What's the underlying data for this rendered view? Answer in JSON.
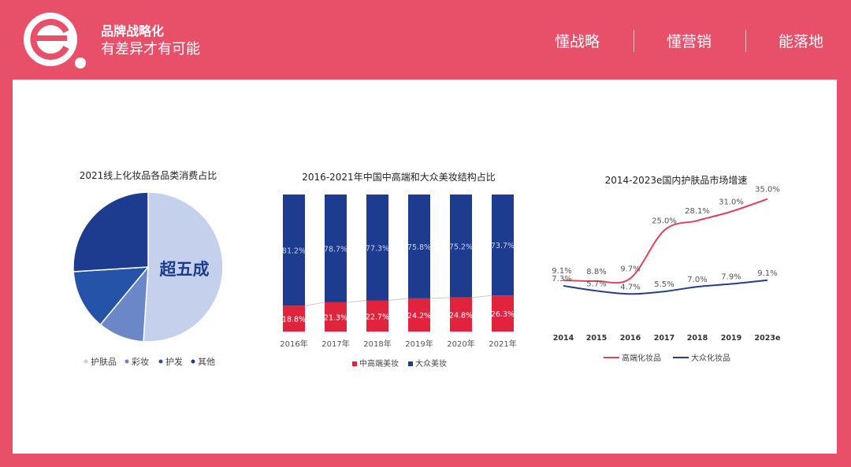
{
  "brand": {
    "title": "品牌战略化",
    "subtitle": "有差异才有可能"
  },
  "nav": [
    {
      "label": "懂战略"
    },
    {
      "label": "懂营销"
    },
    {
      "label": "能落地"
    }
  ],
  "colors": {
    "brand": "#E8506A",
    "navy": "#1D3C8F",
    "red": "#E0243E",
    "pie_light": "#C5D1EC",
    "pie_mid": "#6B87C7",
    "pie_blue": "#2553A8",
    "pie_dark": "#1D3C8F",
    "line_red": "#E0435A",
    "line_navy": "#253E8A"
  },
  "chart_data": [
    {
      "type": "pie",
      "title": "2021线上化妆品各品类消费占比",
      "annotation": "超五成",
      "categories": [
        "护肤品",
        "彩妆",
        "护发",
        "其他"
      ],
      "values": [
        51,
        10,
        13,
        26
      ],
      "legend": "bottom"
    },
    {
      "type": "bar",
      "stacked": true,
      "title": "2016-2021年中国中高端和大众美妆结构占比",
      "categories": [
        "2016年",
        "2017年",
        "2018年",
        "2019年",
        "2020年",
        "2021年"
      ],
      "series": [
        {
          "name": "中高端美妆",
          "values": [
            18.8,
            21.3,
            22.7,
            24.2,
            24.8,
            26.3
          ],
          "labels": [
            "18.8%",
            "21.3%",
            "22.7%",
            "24.2%",
            "24.8%",
            "26.3%"
          ]
        },
        {
          "name": "大众美妆",
          "values": [
            81.2,
            78.7,
            77.3,
            75.8,
            75.2,
            73.7
          ],
          "labels": [
            "81.2%",
            "78.7%",
            "77.3%",
            "75.8%",
            "75.2%",
            "73.7%"
          ]
        }
      ],
      "ylim": [
        0,
        100
      ],
      "legend": "bottom"
    },
    {
      "type": "line",
      "title": "2014-2023e国内护肤品市场增速",
      "x": [
        "2014",
        "2015",
        "2016",
        "2017",
        "2018",
        "2019",
        "2023e"
      ],
      "series": [
        {
          "name": "高端化妆品",
          "values": [
            9.1,
            8.8,
            9.7,
            25.0,
            28.1,
            31.0,
            35.0
          ],
          "labels": [
            "9.1%",
            "8.8%",
            "9.7%",
            "25.0%",
            "28.1%",
            "31.0%",
            "35.0%"
          ]
        },
        {
          "name": "大众化妆品",
          "values": [
            7.3,
            5.7,
            4.7,
            5.5,
            7.0,
            7.9,
            9.1
          ],
          "labels": [
            "7.3%",
            "5.7%",
            "4.7%",
            "5.5%",
            "7.0%",
            "7.9%",
            "9.1%"
          ]
        }
      ],
      "legend": "bottom"
    }
  ]
}
